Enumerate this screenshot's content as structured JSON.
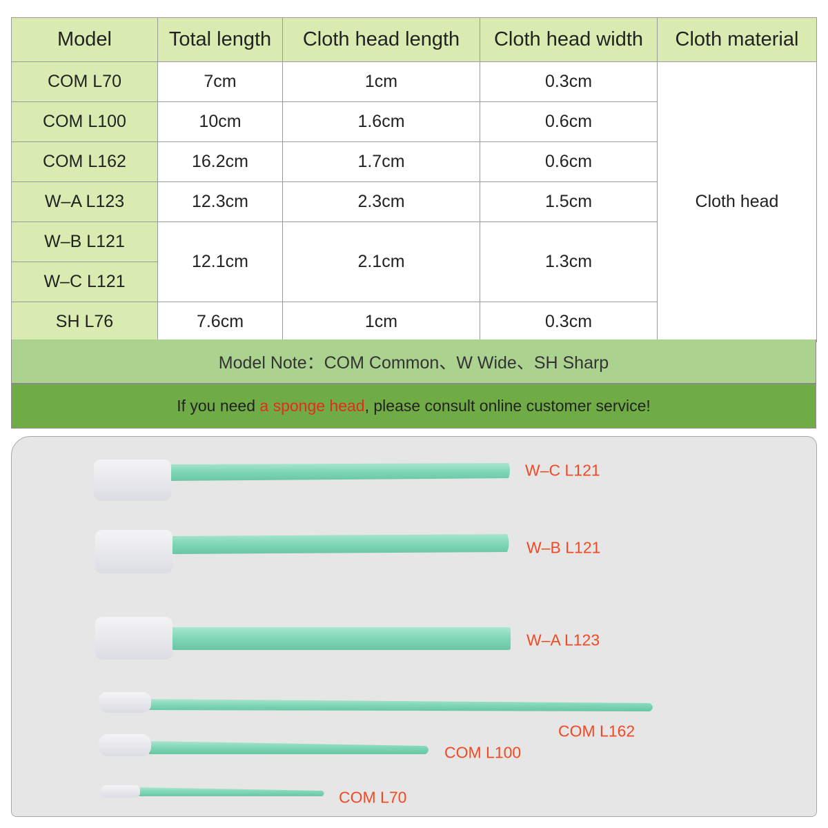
{
  "table": {
    "headers": [
      "Model",
      "Total length",
      "Cloth head length",
      "Cloth head width",
      "Cloth material"
    ],
    "rows": [
      {
        "model": "COM L70",
        "total": "7cm",
        "head_length": "1cm",
        "head_width": "0.3cm"
      },
      {
        "model": "COM L100",
        "total": "10cm",
        "head_length": "1.6cm",
        "head_width": "0.6cm"
      },
      {
        "model": "COM L162",
        "total": "16.2cm",
        "head_length": "1.7cm",
        "head_width": "0.6cm"
      },
      {
        "model": "W–A L123",
        "total": "12.3cm",
        "head_length": "2.3cm",
        "head_width": "1.5cm"
      },
      {
        "model": "W–B L121",
        "total": "12.1cm",
        "head_length": "2.1cm",
        "head_width": "1.3cm"
      },
      {
        "model": "W–C L121"
      },
      {
        "model": "SH L76",
        "total": "7.6cm",
        "head_length": "1cm",
        "head_width": "0.3cm"
      }
    ],
    "material": "Cloth head"
  },
  "note": "Model Note：COM Common、W Wide、SH Sharp",
  "consult": {
    "before": "If you need ",
    "highlight": "a sponge head",
    "after": ", please consult online customer service!"
  },
  "swab_labels": [
    "W–C L121",
    "W–B L121",
    "W–A L123",
    "COM L162",
    "COM L100",
    "COM L70"
  ],
  "colors": {
    "header_bg": "#d9ebb0",
    "note_bg": "#acd290",
    "consult_bg": "#70ac45",
    "highlight": "#e52b1a",
    "label": "#f04a25",
    "stick": "#7fd6b6"
  }
}
